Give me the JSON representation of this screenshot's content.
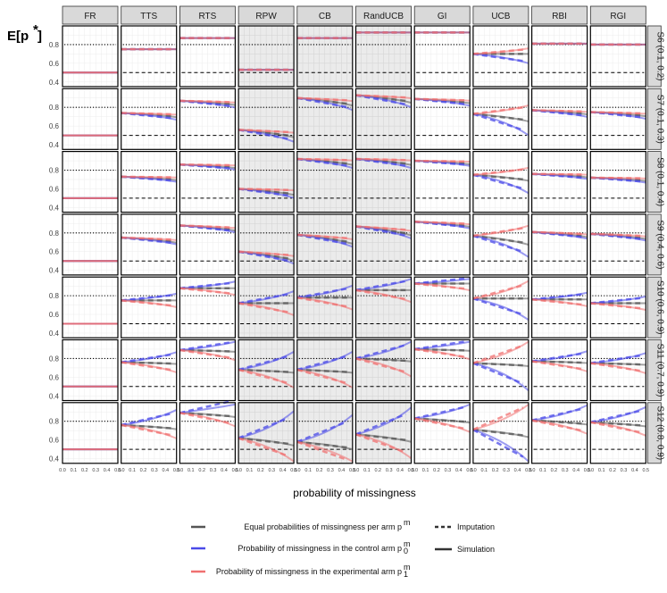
{
  "chart_data": {
    "type": "line",
    "ylabel": "E[p*]",
    "xlabel": "probability of missingness",
    "columns": [
      "FR",
      "TTS",
      "RTS",
      "RPW",
      "CB",
      "RandUCB",
      "GI",
      "UCB",
      "RBI",
      "RGI"
    ],
    "rows": [
      "S6 (0.1, 0.2)",
      "S7 (0.1, 0.3)",
      "S8 (0.1, 0.4)",
      "S9 (0.4, 0.6)",
      "S10 (0.6, 0.9)",
      "S11 (0.7, 0.9)",
      "S12 (0.8, 0.9)"
    ],
    "shaded_columns": [
      "RPW",
      "CB",
      "RandUCB"
    ],
    "x_ticks": [
      "0.0",
      "0.1",
      "0.2",
      "0.3",
      "0.4",
      "0.5"
    ],
    "y_ticks": [
      "0.4",
      "0.6",
      "0.8"
    ],
    "xlim": [
      0,
      0.5
    ],
    "ylim": [
      0.35,
      1.0
    ],
    "reference_lines": {
      "dotted": 0.8,
      "dashed": 0.5
    },
    "series_colors": {
      "equal": "#555555",
      "control": "#4a4ae8",
      "experimental": "#f07070"
    },
    "legend": {
      "equal": "Equal probabilities of missingness per arm p",
      "equal_sup": "m",
      "control": "Probability of missingness in the control arm p",
      "control_sup": "m",
      "control_sub": "0",
      "experimental": "Probability of missingness in the experimental arm p",
      "experimental_sup": "m",
      "experimental_sub": "1",
      "imputation": "Imputation",
      "simulation": "Simulation"
    },
    "start_values": {
      "FR": [
        0.5,
        0.5,
        0.5,
        0.5,
        0.5,
        0.5,
        0.5
      ],
      "TTS": [
        0.75,
        0.74,
        0.73,
        0.75,
        0.75,
        0.76,
        0.76
      ],
      "RTS": [
        0.87,
        0.87,
        0.86,
        0.88,
        0.88,
        0.89,
        0.89
      ],
      "RPW": [
        0.53,
        0.56,
        0.6,
        0.6,
        0.72,
        0.68,
        0.62
      ],
      "CB": [
        0.87,
        0.9,
        0.92,
        0.78,
        0.78,
        0.68,
        0.58
      ],
      "RandUCB": [
        0.93,
        0.93,
        0.92,
        0.87,
        0.86,
        0.8,
        0.66
      ],
      "GI": [
        0.93,
        0.89,
        0.9,
        0.92,
        0.93,
        0.9,
        0.83
      ],
      "UCB": [
        0.7,
        0.73,
        0.75,
        0.77,
        0.77,
        0.75,
        0.71
      ],
      "RBI": [
        0.81,
        0.77,
        0.76,
        0.81,
        0.76,
        0.77,
        0.81
      ],
      "RGI": [
        0.8,
        0.75,
        0.72,
        0.79,
        0.72,
        0.75,
        0.79
      ]
    },
    "end_deltas": {
      "equal": [
        0.0,
        -0.05,
        -0.04,
        -0.06,
        0.0,
        -0.02,
        -0.05
      ],
      "control": [
        0.0,
        -0.08,
        -0.06,
        -0.08,
        0.08,
        0.12,
        0.18
      ],
      "experimental": [
        0.0,
        -0.02,
        -0.01,
        -0.03,
        -0.08,
        -0.12,
        -0.16
      ]
    }
  }
}
